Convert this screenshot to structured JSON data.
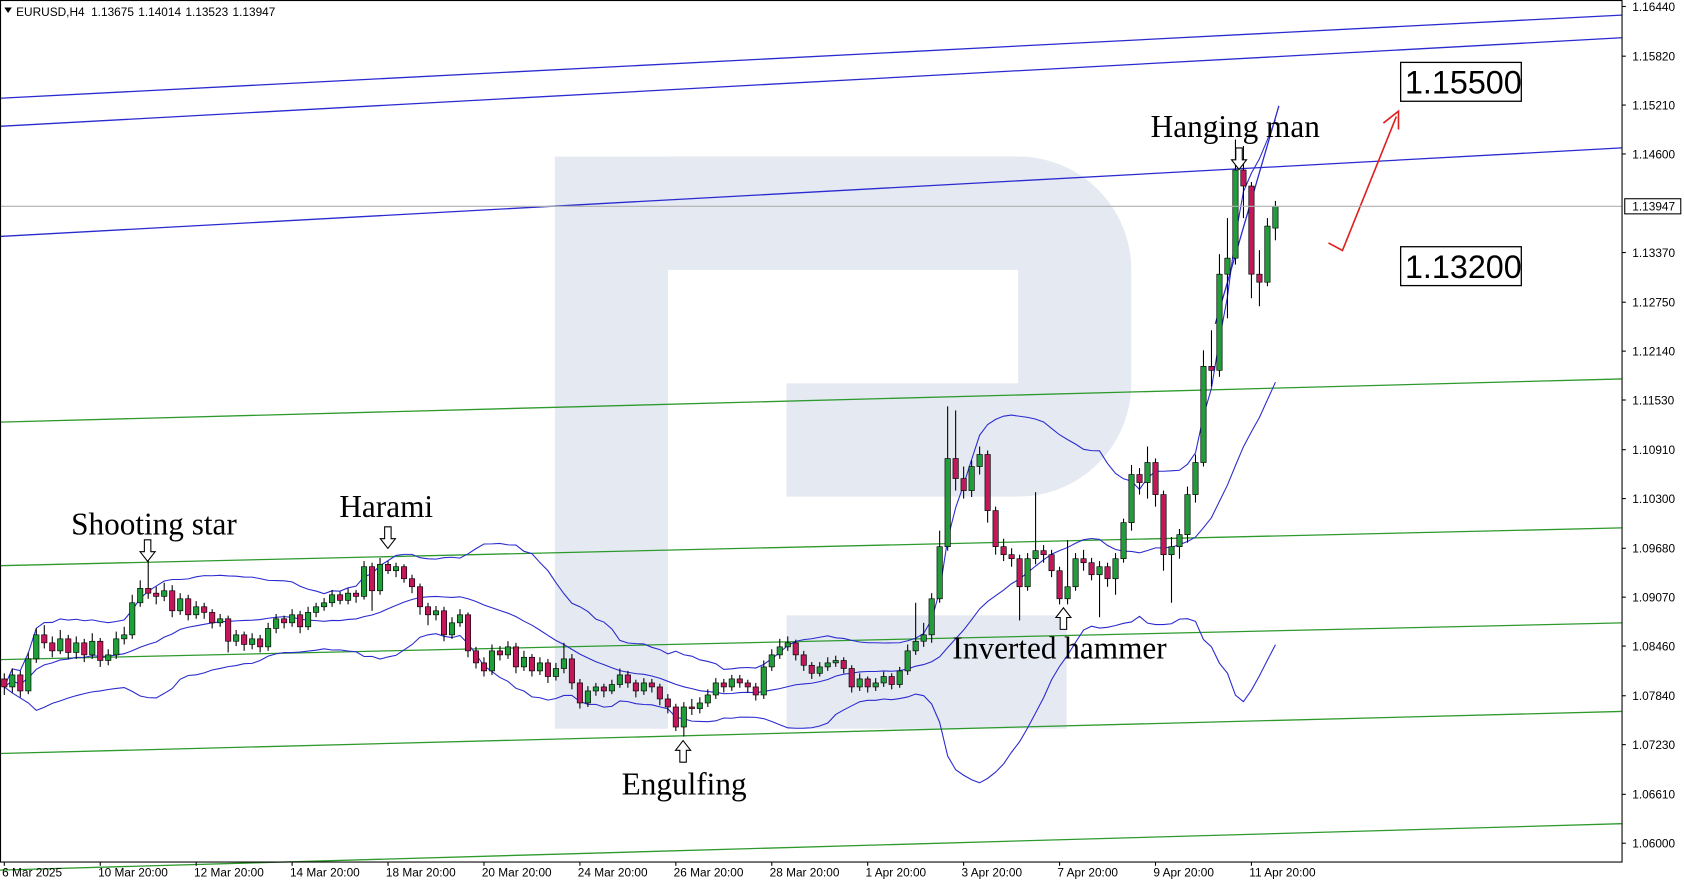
{
  "chart_data": {
    "type": "candlestick",
    "symbol": "EURUSD,H4",
    "categories": [
      "6 Mar 2025",
      null,
      null,
      null,
      null,
      null,
      null,
      null,
      null,
      null,
      null,
      null,
      "10 Mar 20:00",
      null,
      null,
      null,
      null,
      null,
      null,
      null,
      null,
      null,
      null,
      null,
      "12 Mar 20:00",
      null,
      null,
      null,
      null,
      null,
      null,
      null,
      null,
      null,
      null,
      null,
      "14 Mar 20:00",
      null,
      null,
      null,
      null,
      null,
      null,
      null,
      null,
      null,
      null,
      null,
      "18 Mar 20:00",
      null,
      null,
      null,
      null,
      null,
      null,
      null,
      null,
      null,
      null,
      null,
      "20 Mar 20:00",
      null,
      null,
      null,
      null,
      null,
      null,
      null,
      null,
      null,
      null,
      null,
      "24 Mar 20:00",
      null,
      null,
      null,
      null,
      null,
      null,
      null,
      null,
      null,
      null,
      null,
      "26 Mar 20:00",
      null,
      null,
      null,
      null,
      null,
      null,
      null,
      null,
      null,
      null,
      null,
      "28 Mar 20:00",
      null,
      null,
      null,
      null,
      null,
      null,
      null,
      null,
      null,
      null,
      null,
      "1 Apr 20:00",
      null,
      null,
      null,
      null,
      null,
      null,
      null,
      null,
      null,
      null,
      null,
      "3 Apr 20:00",
      null,
      null,
      null,
      null,
      null,
      null,
      null,
      null,
      null,
      null,
      null,
      "7 Apr 20:00",
      null,
      null,
      null,
      null,
      null,
      null,
      null,
      null,
      null,
      null,
      null,
      "9 Apr 20:00",
      null,
      null,
      null,
      null,
      null,
      null,
      null,
      null,
      null,
      null,
      null,
      "11 Apr 20:00",
      null,
      null,
      null
    ],
    "candles": [
      [
        1.0805,
        1.0812,
        1.0785,
        1.0795
      ],
      [
        1.0795,
        1.0818,
        1.0788,
        1.081
      ],
      [
        1.081,
        1.0815,
        1.0782,
        1.079
      ],
      [
        1.079,
        1.0838,
        1.0786,
        1.083
      ],
      [
        1.083,
        1.0868,
        1.0825,
        1.086
      ],
      [
        1.086,
        1.0872,
        1.0843,
        1.085
      ],
      [
        1.085,
        1.0858,
        1.0832,
        1.084
      ],
      [
        1.084,
        1.0866,
        1.0836,
        1.0855
      ],
      [
        1.0855,
        1.086,
        1.083,
        1.0838
      ],
      [
        1.0838,
        1.0858,
        1.083,
        1.085
      ],
      [
        1.085,
        1.0855,
        1.0826,
        1.0835
      ],
      [
        1.0835,
        1.0862,
        1.083,
        1.0852
      ],
      [
        1.0852,
        1.0856,
        1.082,
        1.0828
      ],
      [
        1.0828,
        1.0842,
        1.0822,
        1.0835
      ],
      [
        1.0835,
        1.0864,
        1.083,
        1.0855
      ],
      [
        1.0855,
        1.087,
        1.0848,
        1.086
      ],
      [
        1.086,
        1.091,
        1.0855,
        1.09
      ],
      [
        1.09,
        1.0928,
        1.0895,
        1.0918
      ],
      [
        1.0918,
        1.0955,
        1.0905,
        1.0912
      ],
      [
        1.0912,
        1.092,
        1.0898,
        1.0908
      ],
      [
        1.0908,
        1.0925,
        1.0902,
        1.0915
      ],
      [
        1.0915,
        1.0922,
        1.0882,
        1.089
      ],
      [
        1.089,
        1.0912,
        1.0885,
        1.0905
      ],
      [
        1.0905,
        1.091,
        1.0878,
        1.0885
      ],
      [
        1.0885,
        1.0902,
        1.088,
        1.0895
      ],
      [
        1.0895,
        1.09,
        1.088,
        1.0888
      ],
      [
        1.0888,
        1.0892,
        1.0868,
        1.0875
      ],
      [
        1.0875,
        1.0886,
        1.087,
        1.088
      ],
      [
        1.088,
        1.0884,
        1.0838,
        1.0852
      ],
      [
        1.0852,
        1.0866,
        1.0846,
        1.086
      ],
      [
        1.086,
        1.0864,
        1.084,
        1.0848
      ],
      [
        1.0848,
        1.0862,
        1.0842,
        1.0855
      ],
      [
        1.0855,
        1.086,
        1.0838,
        1.0845
      ],
      [
        1.0845,
        1.0875,
        1.084,
        1.0868
      ],
      [
        1.0868,
        1.0886,
        1.0862,
        1.088
      ],
      [
        1.088,
        1.0884,
        1.0868,
        1.0875
      ],
      [
        1.0875,
        1.0892,
        1.087,
        1.0885
      ],
      [
        1.0885,
        1.089,
        1.0862,
        1.087
      ],
      [
        1.087,
        1.0895,
        1.0866,
        1.0888
      ],
      [
        1.0888,
        1.09,
        1.0882,
        1.0895
      ],
      [
        1.0895,
        1.0906,
        1.089,
        1.09
      ],
      [
        1.09,
        1.0916,
        1.0895,
        1.091
      ],
      [
        1.091,
        1.0914,
        1.0898,
        1.0903
      ],
      [
        1.0903,
        1.0918,
        1.0898,
        1.0912
      ],
      [
        1.0912,
        1.0916,
        1.09,
        1.0908
      ],
      [
        1.0908,
        1.0952,
        1.0904,
        1.0945
      ],
      [
        1.0945,
        1.095,
        1.089,
        1.0915
      ],
      [
        1.0915,
        1.0956,
        1.091,
        1.0948
      ],
      [
        1.0948,
        1.0952,
        1.0936,
        1.094
      ],
      [
        1.094,
        1.095,
        1.0932,
        1.0945
      ],
      [
        1.0945,
        1.0948,
        1.0925,
        1.093
      ],
      [
        1.093,
        1.0935,
        1.0912,
        1.092
      ],
      [
        1.092,
        1.0924,
        1.0885,
        1.0895
      ],
      [
        1.0895,
        1.09,
        1.0872,
        1.0885
      ],
      [
        1.0885,
        1.0896,
        1.0878,
        1.089
      ],
      [
        1.089,
        1.0895,
        1.0852,
        1.086
      ],
      [
        1.086,
        1.0882,
        1.0855,
        1.0875
      ],
      [
        1.0875,
        1.0892,
        1.087,
        1.0885
      ],
      [
        1.0885,
        1.0888,
        1.0832,
        1.084
      ],
      [
        1.084,
        1.0845,
        1.0818,
        1.0825
      ],
      [
        1.0825,
        1.0832,
        1.0808,
        1.0815
      ],
      [
        1.0815,
        1.0848,
        1.081,
        1.084
      ],
      [
        1.084,
        1.0846,
        1.0828,
        1.0835
      ],
      [
        1.0835,
        1.0852,
        1.083,
        1.0845
      ],
      [
        1.0845,
        1.085,
        1.0812,
        1.082
      ],
      [
        1.082,
        1.084,
        1.0815,
        1.0832
      ],
      [
        1.0832,
        1.0836,
        1.0808,
        1.0815
      ],
      [
        1.0815,
        1.0832,
        1.081,
        1.0825
      ],
      [
        1.0825,
        1.083,
        1.08,
        1.0808
      ],
      [
        1.0808,
        1.0825,
        1.0803,
        1.0818
      ],
      [
        1.0818,
        1.085,
        1.0812,
        1.083
      ],
      [
        1.083,
        1.0836,
        1.0792,
        1.08
      ],
      [
        1.08,
        1.0805,
        1.0768,
        1.0775
      ],
      [
        1.0775,
        1.0796,
        1.077,
        1.079
      ],
      [
        1.079,
        1.08,
        1.0784,
        1.0795
      ],
      [
        1.0795,
        1.0799,
        1.0782,
        1.079
      ],
      [
        1.079,
        1.0804,
        1.0786,
        1.0798
      ],
      [
        1.0798,
        1.0818,
        1.0794,
        1.081
      ],
      [
        1.081,
        1.0815,
        1.0794,
        1.08
      ],
      [
        1.08,
        1.0804,
        1.0782,
        1.079
      ],
      [
        1.079,
        1.0806,
        1.0785,
        1.08
      ],
      [
        1.08,
        1.0805,
        1.0788,
        1.0795
      ],
      [
        1.0795,
        1.0799,
        1.0772,
        1.078
      ],
      [
        1.078,
        1.0786,
        1.0762,
        1.077
      ],
      [
        1.077,
        1.0774,
        1.074,
        1.0745
      ],
      [
        1.0745,
        1.0776,
        1.0733,
        1.077
      ],
      [
        1.077,
        1.078,
        1.076,
        1.0768
      ],
      [
        1.0768,
        1.0782,
        1.0762,
        1.0775
      ],
      [
        1.0775,
        1.0792,
        1.077,
        1.0785
      ],
      [
        1.0785,
        1.0806,
        1.078,
        1.08
      ],
      [
        1.08,
        1.0805,
        1.0788,
        1.0795
      ],
      [
        1.0795,
        1.081,
        1.079,
        1.0805
      ],
      [
        1.0805,
        1.081,
        1.0794,
        1.08
      ],
      [
        1.08,
        1.0804,
        1.0788,
        1.0795
      ],
      [
        1.0795,
        1.08,
        1.0778,
        1.0785
      ],
      [
        1.0785,
        1.0828,
        1.078,
        1.082
      ],
      [
        1.082,
        1.0842,
        1.0815,
        1.0835
      ],
      [
        1.0835,
        1.0855,
        1.083,
        1.0845
      ],
      [
        1.0845,
        1.0858,
        1.084,
        1.085
      ],
      [
        1.085,
        1.0854,
        1.0828,
        1.0835
      ],
      [
        1.0835,
        1.084,
        1.0815,
        1.0822
      ],
      [
        1.0822,
        1.0826,
        1.0805,
        1.0812
      ],
      [
        1.0812,
        1.0826,
        1.0808,
        1.082
      ],
      [
        1.082,
        1.0832,
        1.0815,
        1.0825
      ],
      [
        1.0825,
        1.0834,
        1.082,
        1.0828
      ],
      [
        1.0828,
        1.0832,
        1.0812,
        1.0818
      ],
      [
        1.0818,
        1.0822,
        1.0788,
        1.0795
      ],
      [
        1.0795,
        1.0812,
        1.079,
        1.0805
      ],
      [
        1.0805,
        1.0808,
        1.0788,
        1.0795
      ],
      [
        1.0795,
        1.0806,
        1.079,
        1.08
      ],
      [
        1.08,
        1.0814,
        1.0795,
        1.0808
      ],
      [
        1.0808,
        1.0812,
        1.0792,
        1.0798
      ],
      [
        1.0798,
        1.082,
        1.0794,
        1.0815
      ],
      [
        1.0815,
        1.0848,
        1.081,
        1.084
      ],
      [
        1.084,
        1.09,
        1.0835,
        1.0852
      ],
      [
        1.0852,
        1.0875,
        1.0845,
        1.086
      ],
      [
        1.086,
        1.0912,
        1.085,
        1.0905
      ],
      [
        1.0905,
        1.099,
        1.09,
        1.097
      ],
      [
        1.097,
        1.1145,
        1.0965,
        1.108
      ],
      [
        1.108,
        1.114,
        1.104,
        1.1055
      ],
      [
        1.1055,
        1.107,
        1.103,
        1.104
      ],
      [
        1.104,
        1.1078,
        1.1032,
        1.107
      ],
      [
        1.107,
        1.1095,
        1.106,
        1.1085
      ],
      [
        1.1085,
        1.109,
        1.1,
        1.1015
      ],
      [
        1.1015,
        1.102,
        1.096,
        1.097
      ],
      [
        1.097,
        1.098,
        1.0952,
        1.096
      ],
      [
        1.096,
        1.0968,
        1.0945,
        1.0955
      ],
      [
        1.0955,
        1.096,
        1.0878,
        1.092
      ],
      [
        1.092,
        1.0962,
        1.0915,
        1.0955
      ],
      [
        1.0955,
        1.1038,
        1.0948,
        1.0965
      ],
      [
        1.0965,
        1.0972,
        1.095,
        1.096
      ],
      [
        1.096,
        1.0966,
        1.0932,
        1.094
      ],
      [
        1.094,
        1.0945,
        1.0898,
        1.0905
      ],
      [
        1.0905,
        1.0978,
        1.0898,
        1.092
      ],
      [
        1.092,
        1.0962,
        1.0915,
        1.0955
      ],
      [
        1.0955,
        1.0966,
        1.094,
        1.095
      ],
      [
        1.095,
        1.0956,
        1.0928,
        1.0935
      ],
      [
        1.0935,
        1.0952,
        1.0882,
        1.0945
      ],
      [
        1.0945,
        1.095,
        1.092,
        1.093
      ],
      [
        1.093,
        1.0962,
        1.091,
        1.0955
      ],
      [
        1.0955,
        1.1005,
        1.095,
        1.1
      ],
      [
        1.1,
        1.1072,
        1.099,
        1.106
      ],
      [
        1.106,
        1.1068,
        1.1035,
        1.105
      ],
      [
        1.105,
        1.1095,
        1.103,
        1.1075
      ],
      [
        1.1075,
        1.108,
        1.102,
        1.1035
      ],
      [
        1.1035,
        1.104,
        1.094,
        1.096
      ],
      [
        1.096,
        1.0982,
        1.09,
        1.097
      ],
      [
        1.097,
        1.0992,
        1.0955,
        1.0985
      ],
      [
        1.0985,
        1.1045,
        1.0975,
        1.1035
      ],
      [
        1.1035,
        1.1085,
        1.1025,
        1.1075
      ],
      [
        1.1075,
        1.1215,
        1.107,
        1.1195
      ],
      [
        1.1195,
        1.124,
        1.117,
        1.119
      ],
      [
        1.119,
        1.1335,
        1.1182,
        1.131
      ],
      [
        1.131,
        1.138,
        1.1255,
        1.133
      ],
      [
        1.133,
        1.1478,
        1.1322,
        1.144
      ],
      [
        1.144,
        1.147,
        1.138,
        1.142
      ],
      [
        1.142,
        1.1425,
        1.128,
        1.131
      ],
      [
        1.131,
        1.134,
        1.127,
        1.13
      ],
      [
        1.13,
        1.138,
        1.1295,
        1.137
      ],
      [
        1.13675,
        1.14014,
        1.13523,
        1.13947
      ]
    ],
    "up_color": "#1f9e3a",
    "down_color": "#c2185b",
    "band_color": "#2a2ad0",
    "ylim": [
      1.05772,
      1.16521
    ],
    "yticks": [
      {
        "value": 1.1644,
        "label": "1.16440"
      },
      {
        "value": 1.1582,
        "label": "1.15820"
      },
      {
        "value": 1.1521,
        "label": "1.15210"
      },
      {
        "value": 1.146,
        "label": "1.14600"
      },
      {
        "value": 1.1337,
        "label": "1.13370"
      },
      {
        "value": 1.1275,
        "label": "1.12750"
      },
      {
        "value": 1.1214,
        "label": "1.12140"
      },
      {
        "value": 1.1153,
        "label": "1.11530"
      },
      {
        "value": 1.1091,
        "label": "1.10910"
      },
      {
        "value": 1.103,
        "label": "1.10300"
      },
      {
        "value": 1.0968,
        "label": "1.09680"
      },
      {
        "value": 1.0907,
        "label": "1.09070"
      },
      {
        "value": 1.0846,
        "label": "1.08460"
      },
      {
        "value": 1.0784,
        "label": "1.07840"
      },
      {
        "value": 1.0723,
        "label": "1.07230"
      },
      {
        "value": 1.0661,
        "label": "1.06610"
      },
      {
        "value": 1.06,
        "label": "1.06000"
      }
    ],
    "annotations": [
      "Shooting star",
      "Harami",
      "Engulfing",
      "Inverted hammer",
      "Hanging man"
    ],
    "levels": [
      {
        "value": 1.155,
        "label": "1.15500"
      },
      {
        "value": 1.132,
        "label": "1.13200"
      }
    ]
  }
}
